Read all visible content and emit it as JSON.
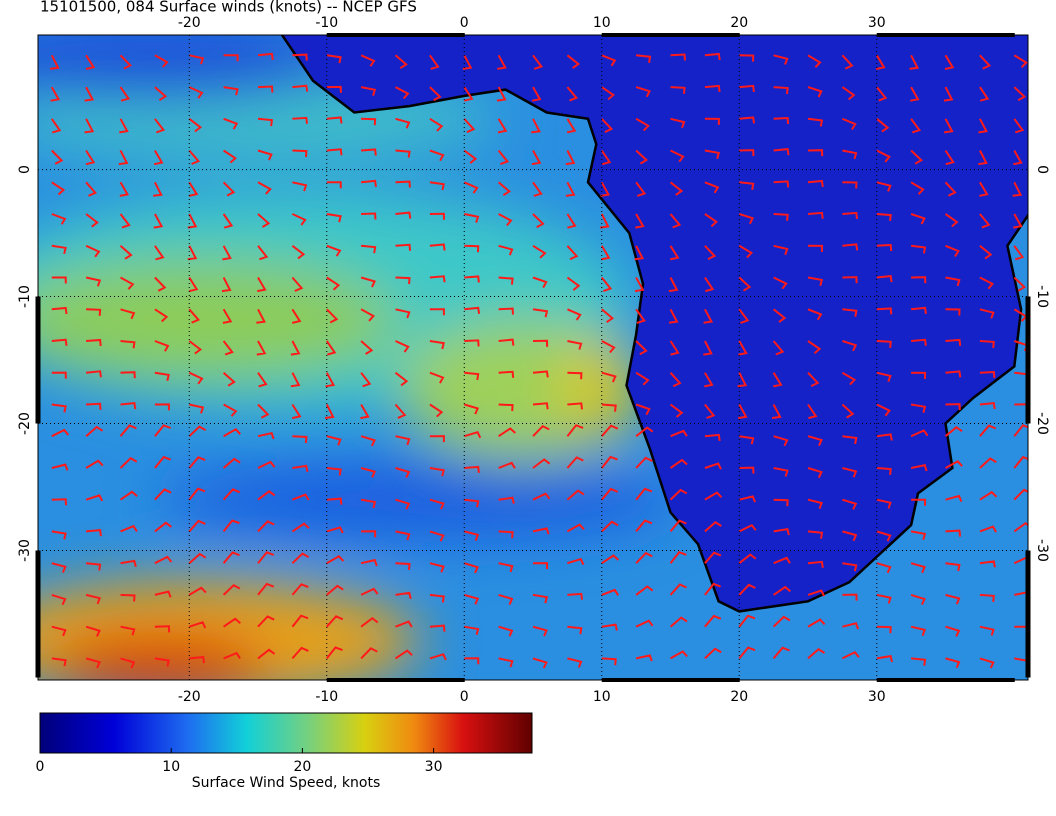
{
  "title": "15101500, 084 Surface winds (knots) -- NCEP GFS",
  "map": {
    "lonlim": [
      -31,
      41
    ],
    "latlim": [
      -40.2,
      10.6
    ],
    "lon_ticks": [
      -20,
      -10,
      0,
      10,
      20,
      30
    ],
    "lat_ticks": [
      0,
      -10,
      -20,
      -30
    ]
  },
  "colorbar": {
    "label": "Surface Wind Speed, knots",
    "clim": [
      0,
      37.5
    ],
    "ticks": [
      0,
      10,
      20,
      30
    ]
  }
}
